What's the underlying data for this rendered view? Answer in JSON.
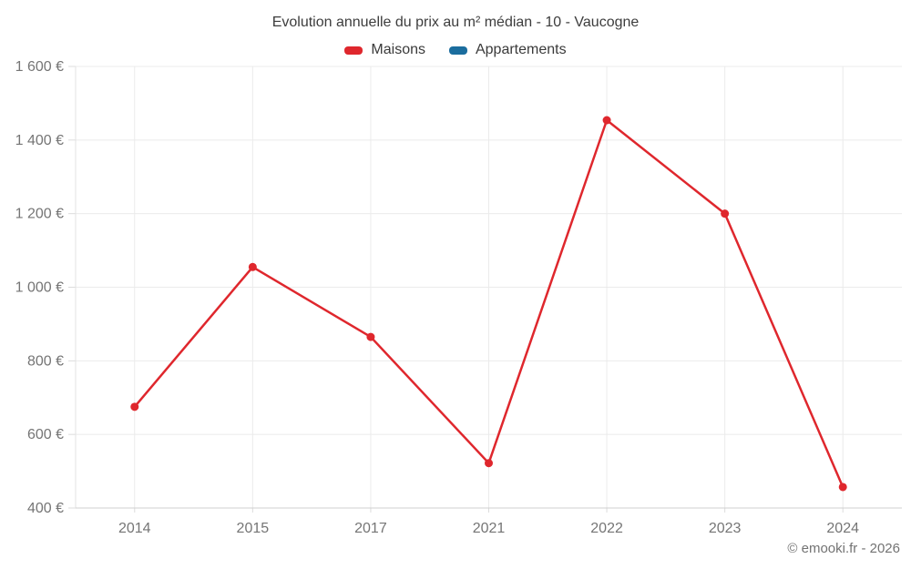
{
  "footer": {
    "copyright": "© emooki.fr - 2026"
  },
  "chart_data": {
    "type": "line",
    "title": "Evolution annuelle du prix au m² médian - 10 - Vaucogne",
    "categories": [
      "2014",
      "2015",
      "2017",
      "2021",
      "2022",
      "2023",
      "2024"
    ],
    "series": [
      {
        "name": "Maisons",
        "color": "#df272d",
        "values": [
          675,
          1055,
          865,
          522,
          1454,
          1200,
          457
        ]
      },
      {
        "name": "Appartements",
        "color": "#1b6d9e",
        "values": []
      }
    ],
    "xlabel": "",
    "ylabel": "",
    "ylabel_suffix": " €",
    "ylim": [
      400,
      1600
    ],
    "ytick_step": 200,
    "ytick_labels": [
      "400 €",
      "600 €",
      "800 €",
      "1 000 €",
      "1 200 €",
      "1 400 €",
      "1 600 €"
    ],
    "grid": true,
    "legend_position": "top"
  },
  "colors": {
    "grid": "#ebebeb",
    "axis": "#cfcfcf",
    "tick": "#dcdcdc",
    "axis_text": "#757575",
    "title_text": "#3d3d3d"
  }
}
